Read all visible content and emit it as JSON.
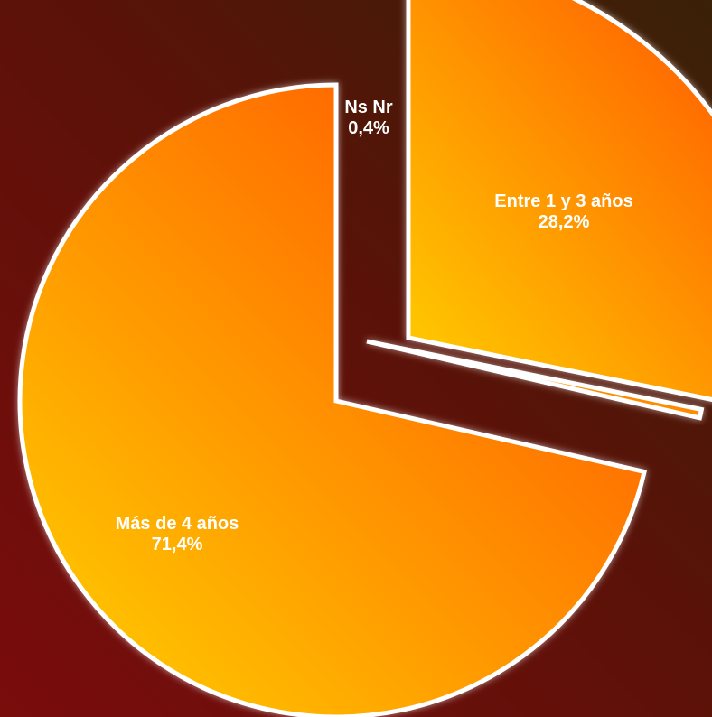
{
  "chart_data": {
    "type": "pie",
    "slices": [
      {
        "label": "Entre 1 y 3 años",
        "value_text": "28,2%",
        "value": 28.2
      },
      {
        "label": "Ns Nr",
        "value_text": "0,4%",
        "value": 0.4
      },
      {
        "label": "Más de 4 años",
        "value_text": "71,4%",
        "value": 71.4
      }
    ],
    "exploded": true,
    "legend": "none",
    "colors": {
      "slice_light": "#ffd200",
      "slice_dark": "#ff4a00",
      "outline": "#ffffff",
      "label": "#ffffff"
    }
  }
}
